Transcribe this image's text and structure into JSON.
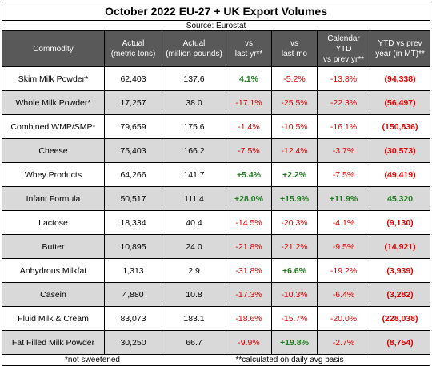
{
  "title": "October 2022 EU-27 + UK Export Volumes",
  "source": "Source:  Eurostat",
  "headers": [
    "Commodity",
    "Actual\n(metric tons)",
    "Actual\n(million pounds)",
    "vs\nlast yr**",
    "vs\nlast mo",
    "Calendar\nYTD\nvs prev yr**",
    "YTD vs prev\nyear (in MT)**"
  ],
  "rows": [
    {
      "commodity": "Skim Milk Powder*",
      "mt": "62,403",
      "mlbs": "137.6",
      "vs_yr": "4.1%",
      "vs_mo": "-5.2%",
      "ytd": "-13.8%",
      "ytd_mt": "(94,338)",
      "c": [
        "pos",
        "neg",
        "neg",
        "neg-bold"
      ]
    },
    {
      "commodity": "Whole Milk Powder*",
      "mt": "17,257",
      "mlbs": "38.0",
      "vs_yr": "-17.1%",
      "vs_mo": "-25.5%",
      "ytd": "-22.3%",
      "ytd_mt": "(56,497)",
      "c": [
        "neg",
        "neg",
        "neg",
        "neg-bold"
      ]
    },
    {
      "commodity": "Combined WMP/SMP*",
      "mt": "79,659",
      "mlbs": "175.6",
      "vs_yr": "-1.4%",
      "vs_mo": "-10.5%",
      "ytd": "-16.1%",
      "ytd_mt": "(150,836)",
      "c": [
        "neg",
        "neg",
        "neg",
        "neg-bold"
      ]
    },
    {
      "commodity": "Cheese",
      "mt": "75,403",
      "mlbs": "166.2",
      "vs_yr": "-7.5%",
      "vs_mo": "-12.4%",
      "ytd": "-3.7%",
      "ytd_mt": "(30,573)",
      "c": [
        "neg",
        "neg",
        "neg",
        "neg-bold"
      ]
    },
    {
      "commodity": "Whey Products",
      "mt": "64,266",
      "mlbs": "141.7",
      "vs_yr": "+5.4%",
      "vs_mo": "+2.2%",
      "ytd": "-7.5%",
      "ytd_mt": "(49,419)",
      "c": [
        "pos",
        "pos",
        "neg",
        "neg-bold"
      ]
    },
    {
      "commodity": "Infant Formula",
      "mt": "50,517",
      "mlbs": "111.4",
      "vs_yr": "+28.0%",
      "vs_mo": "+15.9%",
      "ytd": "+11.9%",
      "ytd_mt": "45,320",
      "c": [
        "pos",
        "pos",
        "pos",
        "pos-bold"
      ]
    },
    {
      "commodity": "Lactose",
      "mt": "18,334",
      "mlbs": "40.4",
      "vs_yr": "-14.5%",
      "vs_mo": "-20.3%",
      "ytd": "-4.1%",
      "ytd_mt": "(9,130)",
      "c": [
        "neg",
        "neg",
        "neg",
        "neg-bold"
      ]
    },
    {
      "commodity": "Butter",
      "mt": "10,895",
      "mlbs": "24.0",
      "vs_yr": "-21.8%",
      "vs_mo": "-21.2%",
      "ytd": "-9.5%",
      "ytd_mt": "(14,921)",
      "c": [
        "neg",
        "neg",
        "neg",
        "neg-bold"
      ]
    },
    {
      "commodity": "Anhydrous Milkfat",
      "mt": "1,313",
      "mlbs": "2.9",
      "vs_yr": "-31.8%",
      "vs_mo": "+6.6%",
      "ytd": "-19.2%",
      "ytd_mt": "(3,939)",
      "c": [
        "neg",
        "pos",
        "neg",
        "neg-bold"
      ]
    },
    {
      "commodity": "Casein",
      "mt": "4,880",
      "mlbs": "10.8",
      "vs_yr": "-17.3%",
      "vs_mo": "-10.3%",
      "ytd": "-6.4%",
      "ytd_mt": "(3,282)",
      "c": [
        "neg",
        "neg",
        "neg",
        "neg-bold"
      ]
    },
    {
      "commodity": "Fluid Milk & Cream",
      "mt": "83,073",
      "mlbs": "183.1",
      "vs_yr": "-18.6%",
      "vs_mo": "-15.7%",
      "ytd": "-20.0%",
      "ytd_mt": "(228,038)",
      "c": [
        "neg",
        "neg",
        "neg",
        "neg-bold"
      ]
    },
    {
      "commodity": "Fat Filled Milk Powder",
      "mt": "30,250",
      "mlbs": "66.7",
      "vs_yr": "-9.9%",
      "vs_mo": "+19.8%",
      "ytd": "-2.7%",
      "ytd_mt": "(8,754)",
      "c": [
        "neg",
        "pos",
        "neg",
        "neg-bold"
      ]
    }
  ],
  "footnotes": {
    "left": "*not sweetened",
    "right": "**calculated on daily avg basis"
  },
  "colors": {
    "header_bg": "#595959",
    "alt_row_bg": "#d9d9d9",
    "positive": "#1e7b1e",
    "negative": "#e00000"
  }
}
